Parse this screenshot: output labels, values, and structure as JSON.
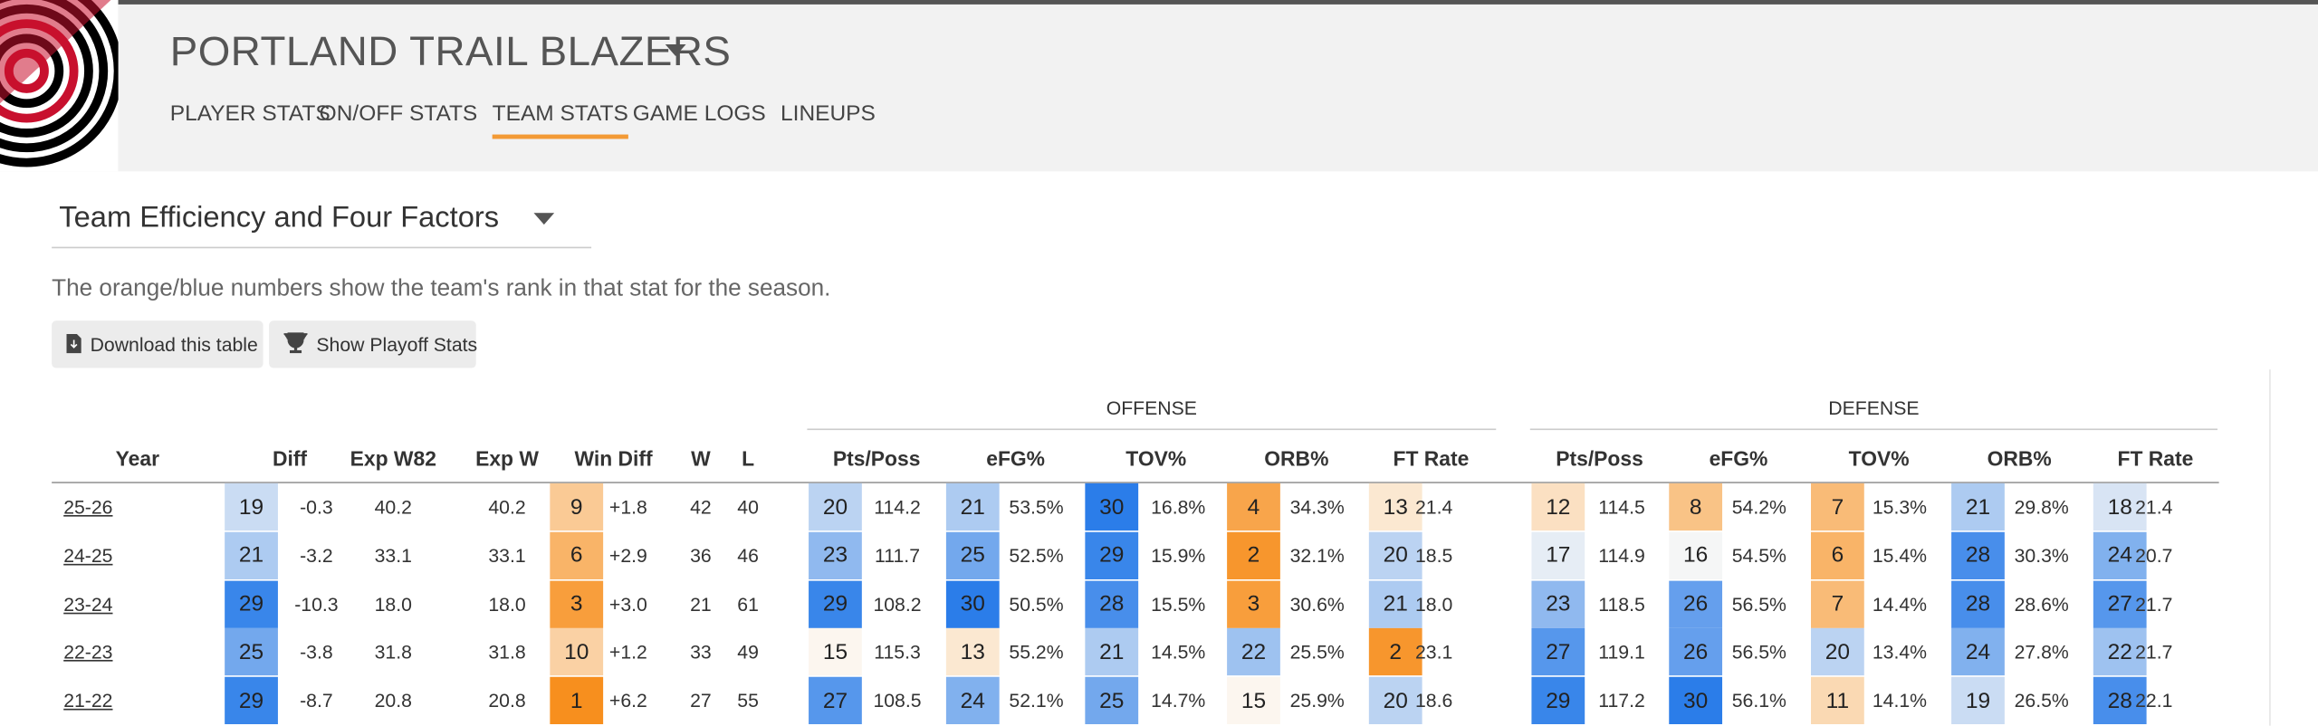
{
  "header": {
    "title": "PORTLAND TRAIL BLAZERS",
    "nav": [
      "PLAYER STATS",
      "ON/OFF STATS",
      "TEAM STATS",
      "GAME LOGS",
      "LINEUPS"
    ],
    "active_nav": 2
  },
  "section": {
    "title": "Team Efficiency and Four Factors",
    "description": "The orange/blue numbers show the team's rank in that stat for the season.",
    "buttons": [
      "Download this table",
      "Show Playoff Stats"
    ]
  },
  "table": {
    "columns": [
      "Year",
      "Diff",
      "Exp W82",
      "Exp W",
      "Win Diff",
      "W",
      "L"
    ],
    "groups": [
      {
        "label": "OFFENSE",
        "columns": [
          "Pts/Poss",
          "eFG%",
          "TOV%",
          "ORB%",
          "FT Rate"
        ]
      },
      {
        "label": "DEFENSE",
        "columns": [
          "Pts/Poss",
          "eFG%",
          "TOV%",
          "ORB%",
          "FT Rate"
        ]
      }
    ],
    "rows": [
      {
        "year": "25-26",
        "cells": [
          {
            "rank": 19,
            "value": "-0.3"
          },
          "40.2",
          "40.2",
          {
            "rank": 9,
            "value": "+1.8"
          },
          "42",
          "40"
        ],
        "offense": [
          {
            "rank": 20,
            "value": "114.2"
          },
          {
            "rank": 21,
            "value": "53.5%"
          },
          {
            "rank": 30,
            "value": "16.8%"
          },
          {
            "rank": 4,
            "value": "34.3%"
          },
          {
            "rank": 13,
            "value": "21.4"
          }
        ],
        "defense": [
          {
            "rank": 12,
            "value": "114.5"
          },
          {
            "rank": 8,
            "value": "54.2%"
          },
          {
            "rank": 7,
            "value": "15.3%"
          },
          {
            "rank": 21,
            "value": "29.8%"
          },
          {
            "rank": 18,
            "value": "21.4"
          }
        ]
      },
      {
        "year": "24-25",
        "cells": [
          {
            "rank": 21,
            "value": "-3.2"
          },
          "33.1",
          "33.1",
          {
            "rank": 6,
            "value": "+2.9"
          },
          "36",
          "46"
        ],
        "offense": [
          {
            "rank": 23,
            "value": "111.7"
          },
          {
            "rank": 25,
            "value": "52.5%"
          },
          {
            "rank": 29,
            "value": "15.9%"
          },
          {
            "rank": 2,
            "value": "32.1%"
          },
          {
            "rank": 20,
            "value": "18.5"
          }
        ],
        "defense": [
          {
            "rank": 17,
            "value": "114.9"
          },
          {
            "rank": 16,
            "value": "54.5%"
          },
          {
            "rank": 6,
            "value": "15.4%"
          },
          {
            "rank": 28,
            "value": "30.3%"
          },
          {
            "rank": 24,
            "value": "20.7"
          }
        ]
      },
      {
        "year": "23-24",
        "cells": [
          {
            "rank": 29,
            "value": "-10.3"
          },
          "18.0",
          "18.0",
          {
            "rank": 3,
            "value": "+3.0"
          },
          "21",
          "61"
        ],
        "offense": [
          {
            "rank": 29,
            "value": "108.2"
          },
          {
            "rank": 30,
            "value": "50.5%"
          },
          {
            "rank": 28,
            "value": "15.5%"
          },
          {
            "rank": 3,
            "value": "30.6%"
          },
          {
            "rank": 21,
            "value": "18.0"
          }
        ],
        "defense": [
          {
            "rank": 23,
            "value": "118.5"
          },
          {
            "rank": 26,
            "value": "56.5%"
          },
          {
            "rank": 7,
            "value": "14.4%"
          },
          {
            "rank": 28,
            "value": "28.6%"
          },
          {
            "rank": 27,
            "value": "21.7"
          }
        ]
      },
      {
        "year": "22-23",
        "cells": [
          {
            "rank": 25,
            "value": "-3.8"
          },
          "31.8",
          "31.8",
          {
            "rank": 10,
            "value": "+1.2"
          },
          "33",
          "49"
        ],
        "offense": [
          {
            "rank": 15,
            "value": "115.3"
          },
          {
            "rank": 13,
            "value": "55.2%"
          },
          {
            "rank": 21,
            "value": "14.5%"
          },
          {
            "rank": 22,
            "value": "25.5%"
          },
          {
            "rank": 2,
            "value": "23.1"
          }
        ],
        "defense": [
          {
            "rank": 27,
            "value": "119.1"
          },
          {
            "rank": 26,
            "value": "56.5%"
          },
          {
            "rank": 20,
            "value": "13.4%"
          },
          {
            "rank": 24,
            "value": "27.8%"
          },
          {
            "rank": 22,
            "value": "21.7"
          }
        ]
      },
      {
        "year": "21-22",
        "cells": [
          {
            "rank": 29,
            "value": "-8.7"
          },
          "20.8",
          "20.8",
          {
            "rank": 1,
            "value": "+6.2"
          },
          "27",
          "55"
        ],
        "offense": [
          {
            "rank": 27,
            "value": "108.5"
          },
          {
            "rank": 24,
            "value": "52.1%"
          },
          {
            "rank": 25,
            "value": "14.7%"
          },
          {
            "rank": 15,
            "value": "25.9%"
          },
          {
            "rank": 20,
            "value": "18.6"
          }
        ],
        "defense": [
          {
            "rank": 29,
            "value": "117.2"
          },
          {
            "rank": 30,
            "value": "56.1%"
          },
          {
            "rank": 11,
            "value": "14.1%"
          },
          {
            "rank": 19,
            "value": "26.5%"
          },
          {
            "rank": 28,
            "value": "22.1"
          }
        ]
      }
    ]
  }
}
